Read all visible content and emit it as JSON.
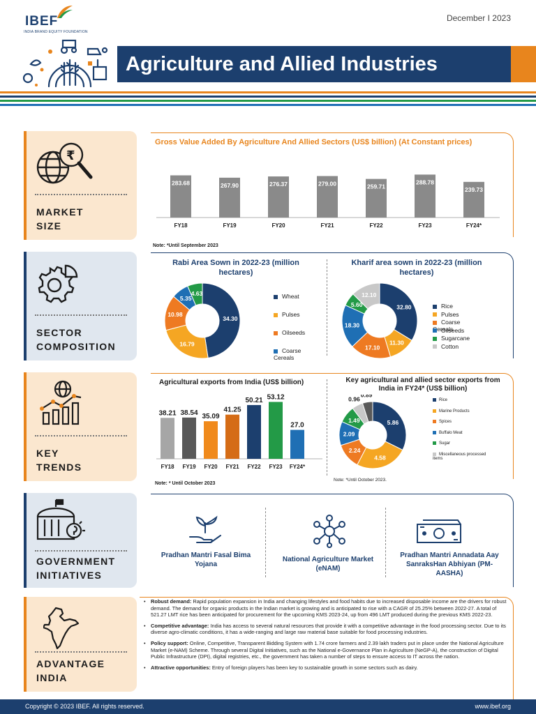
{
  "header": {
    "logo": "IBEF",
    "logo_sub": "INDIA BRAND EQUITY FOUNDATION",
    "date": "December I 2023",
    "title": "Agriculture and Allied Industries"
  },
  "colors": {
    "navy": "#1c3f6e",
    "orange": "#e8851d",
    "green": "#239a47",
    "gray": "#8a8a8a"
  },
  "panels": {
    "market_size": {
      "line1": "MARKET",
      "line2": "SIZE",
      "icon": "globe-magnifier-rupee-icon"
    },
    "sector_composition": {
      "line1": "SECTOR",
      "line2": "COMPOSITION",
      "icon": "gear-pie-icon"
    },
    "key_trends": {
      "line1": "KEY",
      "line2": "TRENDS",
      "icon": "globe-bar-chart-icon"
    },
    "government_initiatives": {
      "line1": "GOVERNMENT",
      "line2": "INITIATIVES",
      "icon": "government-building-icon"
    },
    "advantage_india": {
      "line1": "ADVANTAGE",
      "line2": "INDIA",
      "icon": "india-map-icon"
    }
  },
  "chart_data": [
    {
      "type": "bar",
      "title": "Gross Value Added By Agriculture And Allied Sectors (US$ billion) (At Constant prices)",
      "categories": [
        "FY18",
        "FY19",
        "FY20",
        "FY21",
        "FY22",
        "FY23",
        "FY24*"
      ],
      "values": [
        283.68,
        267.9,
        276.37,
        279.0,
        259.71,
        288.78,
        239.73
      ],
      "value_labels": [
        "283.68",
        "267.90",
        "276.37",
        "279.00",
        "259.71",
        "288.78",
        "239.73"
      ],
      "ylim": [
        0,
        300
      ],
      "note": "Note: *Until September 2023"
    },
    {
      "type": "pie",
      "title": "Rabi Area Sown in 2022-23 (million hectares)",
      "labels": [
        "Wheat",
        "Pulses",
        "Oilseeds",
        "Coarse Cereals",
        ""
      ],
      "values": [
        34.3,
        16.79,
        10.98,
        5.35,
        4.63
      ],
      "value_labels": [
        "34.30",
        "16.79",
        "10.98",
        "5.35",
        "4.63"
      ],
      "colors": [
        "#1c3f6e",
        "#f5a623",
        "#ee7a22",
        "#1f6fb4",
        "#239a47"
      ],
      "legend": [
        "Wheat",
        "Pulses",
        "Oilseeds",
        "Coarse Cereals"
      ]
    },
    {
      "type": "pie",
      "title": "Kharif area sown in 2022-23 (million hectares)",
      "labels": [
        "Rice",
        "Pulses",
        "Coarse Cereals",
        "Oilseeds",
        "Sugarcane",
        "Cotton"
      ],
      "values": [
        32.8,
        11.3,
        17.1,
        18.3,
        5.6,
        12.1
      ],
      "value_labels": [
        "32.80",
        "11.30",
        "17.10",
        "18.30",
        "5.60",
        "12.10"
      ],
      "colors": [
        "#1c3f6e",
        "#f5a623",
        "#ee7a22",
        "#1f6fb4",
        "#239a47",
        "#c8c8c8"
      ],
      "legend": [
        "Rice",
        "Pulses",
        "Coarse Cereals",
        "Oilseeds",
        "Sugarcane",
        "Cotton"
      ]
    },
    {
      "type": "bar",
      "title": "Agricultural exports from India (US$ billion)",
      "categories": [
        "FY18",
        "FY19",
        "FY20",
        "FY21",
        "FY22",
        "FY23",
        "FY24*"
      ],
      "values": [
        38.21,
        38.54,
        35.09,
        41.25,
        50.21,
        53.12,
        27.0
      ],
      "value_labels": [
        "38.21",
        "38.54",
        "35.09",
        "41.25",
        "50.21",
        "53.12",
        "27.0"
      ],
      "colors": [
        "#a6a6a6",
        "#595959",
        "#f08a1c",
        "#d56c16",
        "#1c3f6e",
        "#239a47",
        "#1f6fb4"
      ],
      "ylim": [
        0,
        56
      ],
      "note": "Note: * Until October 2023"
    },
    {
      "type": "pie",
      "title": "Key agricultural and allied sector exports from India in FY24* (US$ billion)",
      "labels": [
        "Rice",
        "Marine Products",
        "Spices",
        "Buffalo Meat",
        "Sugar",
        "Miscellaneous processed items",
        ""
      ],
      "values": [
        5.86,
        4.58,
        2.24,
        2.09,
        1.49,
        0.96,
        0.89
      ],
      "value_labels": [
        "5.86",
        "4.58",
        "2.24",
        "2.09",
        "1.49",
        "0.96",
        "0.89"
      ],
      "colors": [
        "#1c3f6e",
        "#f5a623",
        "#ee7a22",
        "#1f6fb4",
        "#239a47",
        "#c8c8c8",
        "#595959"
      ],
      "legend": [
        "Rice",
        "Marine Products",
        "Spices",
        "Buffalo Meat",
        "Sugar",
        "Miscellaneous processed items"
      ],
      "note": "Note: *Until October 2023."
    }
  ],
  "initiatives": [
    {
      "label": "Pradhan Mantri Fasal Bima Yojana",
      "icon": "hand-plant-icon"
    },
    {
      "label": "National Agriculture Market (eNAM)",
      "icon": "network-nodes-icon"
    },
    {
      "label": "Pradhan Mantri Annadata Aay SanraksHan Abhiyan (PM-AASHA)",
      "icon": "currency-notes-icon"
    }
  ],
  "advantage": [
    {
      "head": "Robust demand:",
      "text": " Rapid population expansion in India and changing lifestyles and food habits due to increased disposable income are the drivers for robust demand. The demand for organic products in the Indian market is growing and is anticipated to rise with a CAGR of 25.25% between 2022-27. A total of 521.27 LMT rice has been anticipated for procurement for the upcoming KMS 2023-24, up from 496 LMT produced during the previous KMS 2022-23."
    },
    {
      "head": "Competitive advantage:",
      "text": " India has access to several natural resources that provide it with a competitive advantage in the food processing sector. Due to its diverse agro-climatic conditions, it has a wide-ranging and large raw material base suitable for food processing industries."
    },
    {
      "head": "Policy support:",
      "text": " Online, Competitive, Transparent Bidding System with 1.74 crore farmers and 2.39 lakh traders put in place under the National Agriculture Market (e-NAM) Scheme. Through several Digital Initiatives, such as the National e-Governance Plan in Agriculture (NeGP-A), the construction of Digital Public Infrastructure (DPI), digital registries, etc., the government has taken a number of steps to ensure access to IT across the nation."
    },
    {
      "head": "Attractive opportunities:",
      "text": " Entry of foreign players has been key to sustainable growth in some sectors such as dairy."
    }
  ],
  "footer": {
    "copyright": "Copyright © 2023 IBEF. All rights reserved.",
    "url": "www.ibef.org"
  }
}
